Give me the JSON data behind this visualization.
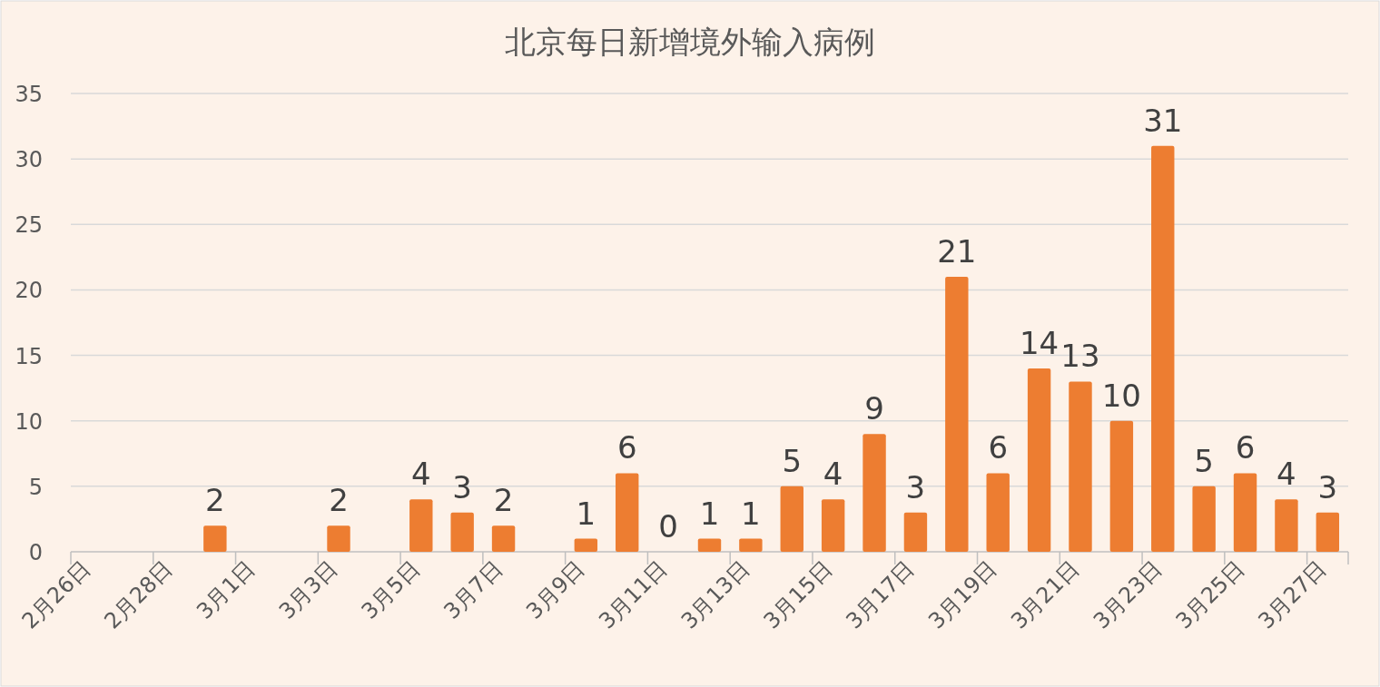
{
  "chart_data": {
    "type": "bar",
    "title": "北京每日新增境外输入病例",
    "categories": [
      "2月26日",
      null,
      "2月28日",
      null,
      "3月1日",
      null,
      "3月3日",
      null,
      "3月5日",
      null,
      "3月7日",
      null,
      "3月9日",
      null,
      "3月11日",
      null,
      "3月13日",
      null,
      "3月15日",
      null,
      "3月17日",
      null,
      "3月19日",
      null,
      "3月21日",
      null,
      "3月23日",
      null,
      "3月25日",
      null,
      "3月27日"
    ],
    "values": [
      null,
      null,
      null,
      2,
      null,
      null,
      2,
      null,
      4,
      3,
      2,
      null,
      1,
      6,
      0,
      1,
      1,
      5,
      4,
      9,
      3,
      21,
      6,
      14,
      13,
      10,
      31,
      5,
      6,
      4,
      3
    ],
    "color": "#ed7d31",
    "ylim": [
      0,
      35
    ],
    "yticks": [
      0,
      5,
      10,
      15,
      20,
      25,
      30,
      35
    ],
    "grid": "y",
    "data_labels": true
  }
}
